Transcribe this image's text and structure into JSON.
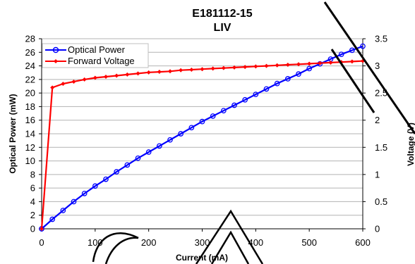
{
  "chart_data": {
    "type": "line",
    "title": "E181112-15",
    "subtitle": "LIV",
    "xlabel": "Current (mA)",
    "ylabel": "Optical Power (mW)",
    "y2label": "Voltage (V)",
    "xlim": [
      0,
      600
    ],
    "ylim": [
      0,
      28
    ],
    "y2lim": [
      0,
      3.5
    ],
    "x_ticks": [
      "0",
      "100",
      "200",
      "300",
      "400",
      "500",
      "600"
    ],
    "y_ticks": [
      "0",
      "2",
      "4",
      "6",
      "8",
      "10",
      "12",
      "14",
      "16",
      "18",
      "20",
      "22",
      "24",
      "26",
      "28"
    ],
    "y2_ticks": [
      "0",
      "0.5",
      "1",
      "1.5",
      "2",
      "2.5",
      "3",
      "3.5"
    ],
    "grid": "horizontal",
    "legend": "top-left",
    "x": [
      0,
      20,
      40,
      60,
      80,
      100,
      120,
      140,
      160,
      180,
      200,
      220,
      240,
      260,
      280,
      300,
      320,
      340,
      360,
      380,
      400,
      420,
      440,
      460,
      480,
      500,
      520,
      540,
      560,
      580,
      600
    ],
    "series": [
      {
        "name": "Optical Power",
        "axis": "left",
        "color": "#0000FF",
        "marker": "circle",
        "values": [
          0.0,
          1.4,
          2.7,
          4.0,
          5.2,
          6.3,
          7.3,
          8.4,
          9.4,
          10.4,
          11.3,
          12.2,
          13.1,
          14.0,
          14.9,
          15.8,
          16.6,
          17.4,
          18.2,
          19.0,
          19.8,
          20.6,
          21.4,
          22.1,
          22.8,
          23.6,
          24.3,
          25.0,
          25.7,
          26.3,
          26.9
        ]
      },
      {
        "name": "Forward Voltage",
        "axis": "right",
        "color": "#FF0000",
        "marker": "diamond",
        "values": [
          0.0,
          2.6,
          2.67,
          2.71,
          2.75,
          2.78,
          2.8,
          2.82,
          2.84,
          2.86,
          2.88,
          2.89,
          2.9,
          2.92,
          2.93,
          2.94,
          2.95,
          2.96,
          2.97,
          2.98,
          2.99,
          3.0,
          3.01,
          3.02,
          3.03,
          3.04,
          3.05,
          3.06,
          3.07,
          3.08,
          3.09
        ]
      }
    ]
  }
}
